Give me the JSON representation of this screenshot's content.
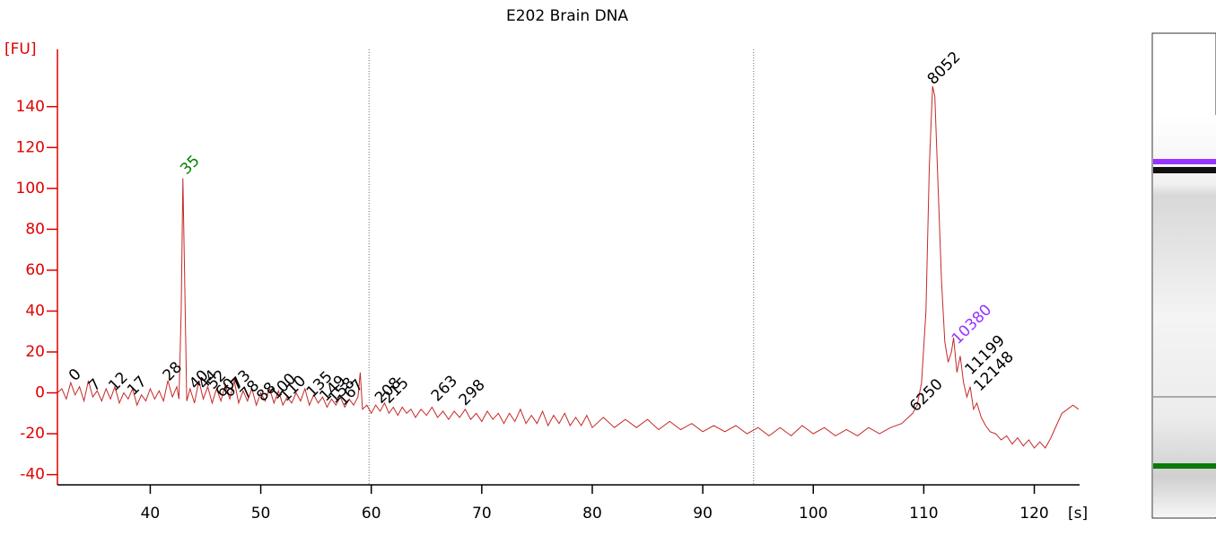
{
  "chart_data": {
    "type": "line",
    "title": "E202 Brain DNA",
    "ylabel": "[FU]",
    "xlabel": "[s]",
    "color": "#c62828",
    "y_axis_color": "#e00000",
    "xlim": [
      31.6,
      124.1
    ],
    "ylim": [
      -45,
      168
    ],
    "xticks": [
      40,
      50,
      60,
      70,
      80,
      90,
      100,
      110,
      120
    ],
    "yticks": [
      -40,
      -20,
      0,
      20,
      40,
      60,
      80,
      100,
      120,
      140
    ],
    "markers": [
      59.8,
      94.6
    ],
    "x": [
      31.6,
      32,
      32.4,
      32.8,
      33.2,
      33.6,
      34,
      34.4,
      34.8,
      35.2,
      35.6,
      36,
      36.4,
      36.8,
      37.2,
      37.6,
      38,
      38.4,
      38.8,
      39.2,
      39.6,
      40,
      40.4,
      40.8,
      41.2,
      41.6,
      42,
      42.4,
      42.6,
      42.8,
      42.95,
      43.1,
      43.3,
      43.6,
      44,
      44.4,
      44.8,
      45.2,
      45.6,
      46,
      46.4,
      46.8,
      47.2,
      47.6,
      48,
      48.4,
      48.8,
      49.2,
      49.6,
      50,
      50.4,
      50.8,
      51.2,
      51.6,
      52,
      52.4,
      52.8,
      53.2,
      53.6,
      54,
      54.4,
      54.8,
      55.2,
      55.6,
      56,
      56.4,
      56.8,
      57.2,
      57.6,
      58,
      58.4,
      58.8,
      59,
      59.2,
      59.6,
      60,
      60.4,
      60.8,
      61.2,
      61.6,
      62,
      62.4,
      62.8,
      63.2,
      63.6,
      64,
      64.5,
      65,
      65.5,
      66,
      66.5,
      67,
      67.5,
      68,
      68.5,
      69,
      69.5,
      70,
      70.5,
      71,
      71.5,
      72,
      72.5,
      73,
      73.5,
      74,
      74.5,
      75,
      75.5,
      76,
      76.5,
      77,
      77.5,
      78,
      78.5,
      79,
      79.5,
      80,
      81,
      82,
      83,
      84,
      85,
      86,
      87,
      88,
      89,
      90,
      91,
      92,
      93,
      94,
      95,
      96,
      97,
      98,
      99,
      100,
      101,
      102,
      103,
      104,
      105,
      106,
      107,
      108,
      108.6,
      109,
      109.4,
      109.8,
      110.2,
      110.5,
      110.8,
      111,
      111.3,
      111.6,
      111.9,
      112.2,
      112.5,
      112.7,
      113,
      113.3,
      113.6,
      113.9,
      114.2,
      114.5,
      114.8,
      115.2,
      115.6,
      116,
      116.5,
      117,
      117.5,
      118,
      118.5,
      119,
      119.5,
      120,
      120.5,
      121,
      121.5,
      122,
      122.5,
      123,
      123.5,
      124
    ],
    "values": [
      0,
      2,
      -3,
      5,
      -1,
      3,
      -4,
      6,
      -2,
      1,
      -4,
      2,
      -3,
      3,
      -5,
      0,
      -3,
      2,
      -6,
      -1,
      -4,
      2,
      -3,
      1,
      -4,
      6,
      -2,
      3,
      -3,
      40,
      105,
      60,
      -4,
      2,
      -5,
      6,
      -3,
      3,
      -5,
      2,
      -4,
      4,
      -3,
      6,
      -5,
      1,
      -4,
      2,
      -6,
      0,
      -4,
      2,
      -5,
      1,
      -6,
      -2,
      -5,
      0,
      -4,
      2,
      -6,
      -1,
      -5,
      -2,
      -7,
      -3,
      -6,
      -2,
      -7,
      -3,
      -6,
      -2,
      10,
      -8,
      -6,
      -10,
      -6,
      -9,
      -5,
      -10,
      -7,
      -11,
      -7,
      -10,
      -8,
      -12,
      -8,
      -11,
      -7,
      -12,
      -9,
      -13,
      -9,
      -12,
      -8,
      -13,
      -10,
      -14,
      -9,
      -13,
      -10,
      -15,
      -10,
      -14,
      -8,
      -15,
      -11,
      -15,
      -9,
      -16,
      -11,
      -15,
      -10,
      -16,
      -12,
      -16,
      -11,
      -17,
      -12,
      -17,
      -13,
      -17,
      -13,
      -18,
      -14,
      -18,
      -15,
      -19,
      -16,
      -19,
      -16,
      -20,
      -17,
      -21,
      -17,
      -21,
      -16,
      -20,
      -17,
      -21,
      -18,
      -21,
      -17,
      -20,
      -17,
      -15,
      -12,
      -10,
      -6,
      5,
      40,
      110,
      150,
      145,
      100,
      55,
      25,
      15,
      20,
      27,
      10,
      18,
      5,
      -2,
      3,
      -8,
      -5,
      -12,
      -16,
      -19,
      -20,
      -23,
      -21,
      -25,
      -22,
      -26,
      -23,
      -27,
      -24,
      -27,
      -22,
      -16,
      -10,
      -8,
      -6,
      -8
    ],
    "peaks": [
      {
        "label": "0",
        "x": 32.9,
        "y": 7,
        "color": "#000000"
      },
      {
        "label": "7",
        "x": 34.7,
        "y": 2,
        "color": "#000000"
      },
      {
        "label": "12",
        "x": 36.5,
        "y": 2,
        "color": "#000000"
      },
      {
        "label": "17",
        "x": 38.2,
        "y": 0,
        "color": "#000000"
      },
      {
        "label": "28",
        "x": 41.4,
        "y": 7,
        "color": "#000000"
      },
      {
        "label": "35",
        "x": 43.0,
        "y": 108,
        "color": "#008000"
      },
      {
        "label": "40",
        "x": 43.8,
        "y": 3,
        "color": "#000000"
      },
      {
        "label": "44",
        "x": 44.6,
        "y": 3,
        "color": "#000000"
      },
      {
        "label": "52",
        "x": 45.4,
        "y": 3,
        "color": "#000000"
      },
      {
        "label": "60",
        "x": 46.2,
        "y": -1,
        "color": "#000000"
      },
      {
        "label": "67",
        "x": 46.9,
        "y": -1,
        "color": "#000000"
      },
      {
        "label": "73",
        "x": 47.6,
        "y": 3,
        "color": "#000000"
      },
      {
        "label": "78",
        "x": 48.4,
        "y": -2,
        "color": "#000000"
      },
      {
        "label": "88",
        "x": 49.9,
        "y": -3,
        "color": "#000000"
      },
      {
        "label": "100",
        "x": 51.1,
        "y": -2,
        "color": "#000000"
      },
      {
        "label": "110",
        "x": 52.0,
        "y": -3,
        "color": "#000000"
      },
      {
        "label": "135",
        "x": 54.4,
        "y": -1,
        "color": "#000000"
      },
      {
        "label": "149",
        "x": 55.6,
        "y": -3,
        "color": "#000000"
      },
      {
        "label": "158",
        "x": 56.4,
        "y": -4,
        "color": "#000000"
      },
      {
        "label": "167",
        "x": 57.2,
        "y": -5,
        "color": "#000000"
      },
      {
        "label": "208",
        "x": 60.6,
        "y": -4,
        "color": "#000000"
      },
      {
        "label": "215",
        "x": 61.3,
        "y": -4,
        "color": "#000000"
      },
      {
        "label": "263",
        "x": 65.7,
        "y": -3,
        "color": "#000000"
      },
      {
        "label": "298",
        "x": 68.2,
        "y": -5,
        "color": "#000000"
      },
      {
        "label": "6250",
        "x": 109.0,
        "y": -8,
        "color": "#000000"
      },
      {
        "label": "8052",
        "x": 110.6,
        "y": 152,
        "color": "#000000"
      },
      {
        "label": "10380",
        "x": 112.8,
        "y": 25,
        "color": "#9933ff"
      },
      {
        "label": "11199",
        "x": 114.0,
        "y": 10,
        "color": "#000000"
      },
      {
        "label": "12148",
        "x": 114.8,
        "y": 2,
        "color": "#000000"
      }
    ]
  }
}
